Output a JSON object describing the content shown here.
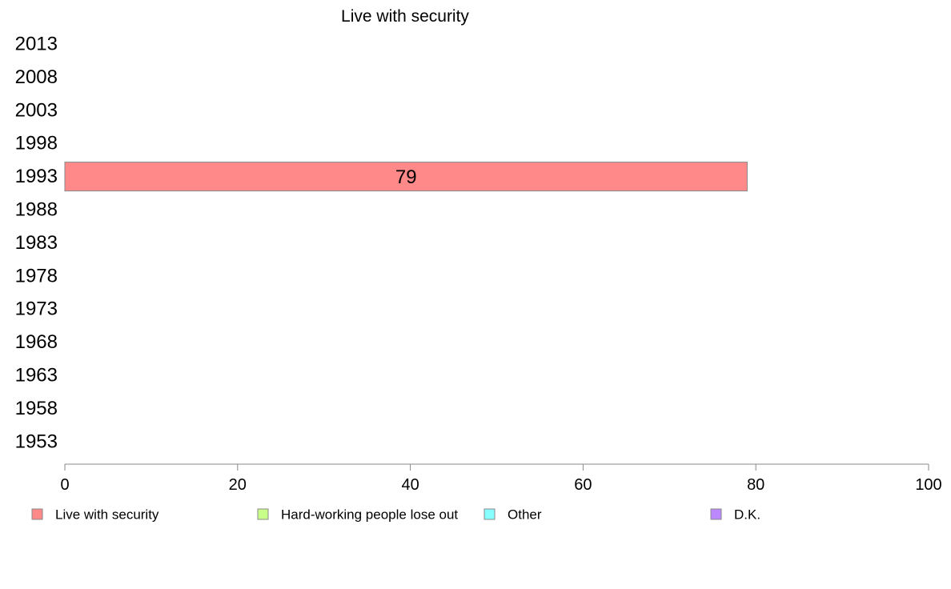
{
  "chart_data": {
    "type": "bar",
    "orientation": "horizontal",
    "title": "Live with security",
    "categories": [
      "2013",
      "2008",
      "2003",
      "1998",
      "1993",
      "1988",
      "1983",
      "1978",
      "1973",
      "1968",
      "1963",
      "1958",
      "1953"
    ],
    "series": [
      {
        "name": "Live with security",
        "color": "#ff8888",
        "values": [
          null,
          null,
          null,
          null,
          79,
          null,
          null,
          null,
          null,
          null,
          null,
          null,
          null
        ]
      },
      {
        "name": "Hard-working people lose out",
        "color": "#c8ff88",
        "values": [
          null,
          null,
          null,
          null,
          null,
          null,
          null,
          null,
          null,
          null,
          null,
          null,
          null
        ]
      },
      {
        "name": "Other",
        "color": "#88ffff",
        "values": [
          null,
          null,
          null,
          null,
          null,
          null,
          null,
          null,
          null,
          null,
          null,
          null,
          null
        ]
      },
      {
        "name": "D.K.",
        "color": "#bb88ff",
        "values": [
          null,
          null,
          null,
          null,
          null,
          null,
          null,
          null,
          null,
          null,
          null,
          null,
          null
        ]
      }
    ],
    "data_labels": [
      "",
      "",
      "",
      "",
      "79",
      "",
      "",
      "",
      "",
      "",
      "",
      "",
      ""
    ],
    "xlim": [
      0,
      100
    ],
    "xticks": [
      "0",
      "20",
      "40",
      "60",
      "80",
      "100"
    ],
    "legend_position": "bottom",
    "grid": false
  }
}
